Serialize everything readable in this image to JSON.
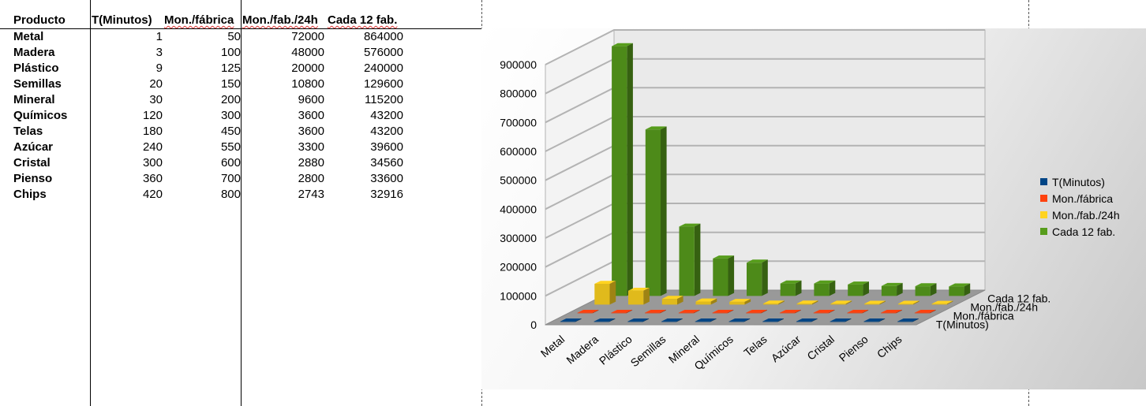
{
  "table": {
    "headers": [
      "Producto",
      "T(Minutos)",
      "Mon./fábrica",
      "Mon./fab./24h",
      "Cada 12 fab."
    ],
    "rows": [
      [
        "Metal",
        "1",
        "50",
        "72000",
        "864000"
      ],
      [
        "Madera",
        "3",
        "100",
        "48000",
        "576000"
      ],
      [
        "Plástico",
        "9",
        "125",
        "20000",
        "240000"
      ],
      [
        "Semillas",
        "20",
        "150",
        "10800",
        "129600"
      ],
      [
        "Mineral",
        "30",
        "200",
        "9600",
        "115200"
      ],
      [
        "Químicos",
        "120",
        "300",
        "3600",
        "43200"
      ],
      [
        "Telas",
        "180",
        "450",
        "3600",
        "43200"
      ],
      [
        "Azúcar",
        "240",
        "550",
        "3300",
        "39600"
      ],
      [
        "Cristal",
        "300",
        "600",
        "2880",
        "34560"
      ],
      [
        "Pienso",
        "360",
        "700",
        "2800",
        "33600"
      ],
      [
        "Chips",
        "420",
        "800",
        "2743",
        "32916"
      ]
    ]
  },
  "chart_data": {
    "type": "bar",
    "categories": [
      "Metal",
      "Madera",
      "Plástico",
      "Semillas",
      "Mineral",
      "Químicos",
      "Telas",
      "Azúcar",
      "Cristal",
      "Pienso",
      "Chips"
    ],
    "series": [
      {
        "name": "T(Minutos)",
        "color": "#004586",
        "values": [
          1,
          3,
          9,
          20,
          30,
          120,
          180,
          240,
          300,
          360,
          420
        ]
      },
      {
        "name": "Mon./fábrica",
        "color": "#ff420e",
        "values": [
          50,
          100,
          125,
          150,
          200,
          300,
          450,
          550,
          600,
          700,
          800
        ]
      },
      {
        "name": "Mon./fab./24h",
        "color": "#ffd320",
        "values": [
          72000,
          48000,
          20000,
          10800,
          9600,
          3600,
          3600,
          3300,
          2880,
          2800,
          2743
        ]
      },
      {
        "name": "Cada 12 fab.",
        "color": "#579d1c",
        "values": [
          864000,
          576000,
          240000,
          129600,
          115200,
          43200,
          43200,
          39600,
          34560,
          33600,
          32916
        ]
      }
    ],
    "ylim": [
      0,
      900000
    ],
    "yticks": [
      "0",
      "100000",
      "200000",
      "300000",
      "400000",
      "500000",
      "600000",
      "700000",
      "800000",
      "900000"
    ],
    "depth_labels": [
      "T(Minutos)",
      "Mon./fábrica",
      "Mon./fab./24h",
      "Cada 12 fab."
    ],
    "grid": true,
    "legend_position": "right",
    "three_d": true
  }
}
